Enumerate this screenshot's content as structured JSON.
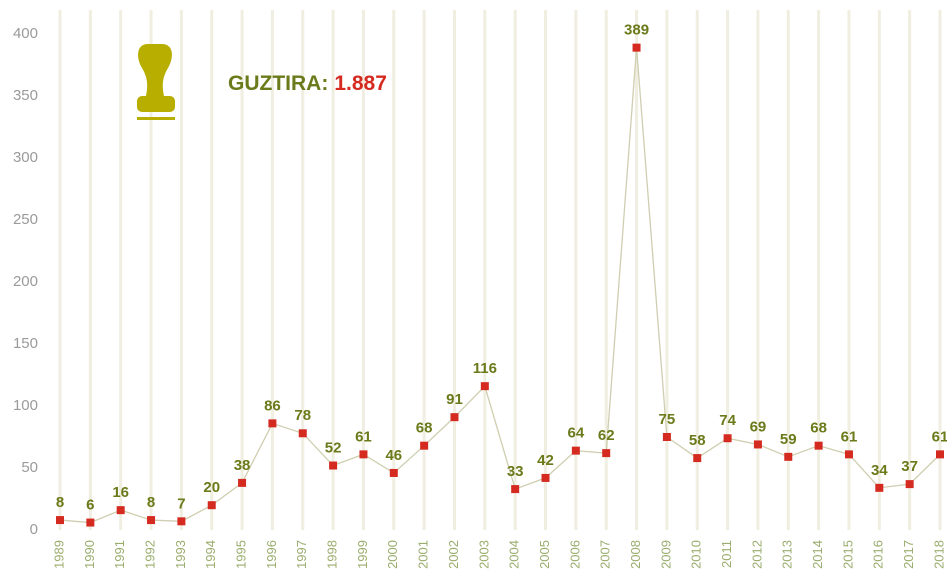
{
  "chart_data": {
    "type": "line",
    "annotations": [
      "GUZTIRA:",
      "1.887"
    ],
    "categories": [
      "1989",
      "1990",
      "1991",
      "1992",
      "1993",
      "1994",
      "1995",
      "1996",
      "1997",
      "1998",
      "1999",
      "2000",
      "2001",
      "2002",
      "2003",
      "2004",
      "2005",
      "2006",
      "2007",
      "2008",
      "2009",
      "2010",
      "2011",
      "2012",
      "2013",
      "2014",
      "2015",
      "2016",
      "2017",
      "2018"
    ],
    "series": [
      {
        "color": "#d42a20",
        "values": [
          8,
          6,
          16,
          8,
          7,
          20,
          38,
          86,
          78,
          52,
          61,
          46,
          68,
          91,
          116,
          33,
          42,
          64,
          62,
          389,
          75,
          58,
          74,
          69,
          59,
          68,
          61,
          34,
          37,
          61
        ]
      }
    ],
    "ylim": [
      0,
      400
    ],
    "yticks": [
      0,
      50,
      100,
      150,
      200,
      250,
      300,
      350,
      400
    ],
    "grid": true
  }
}
